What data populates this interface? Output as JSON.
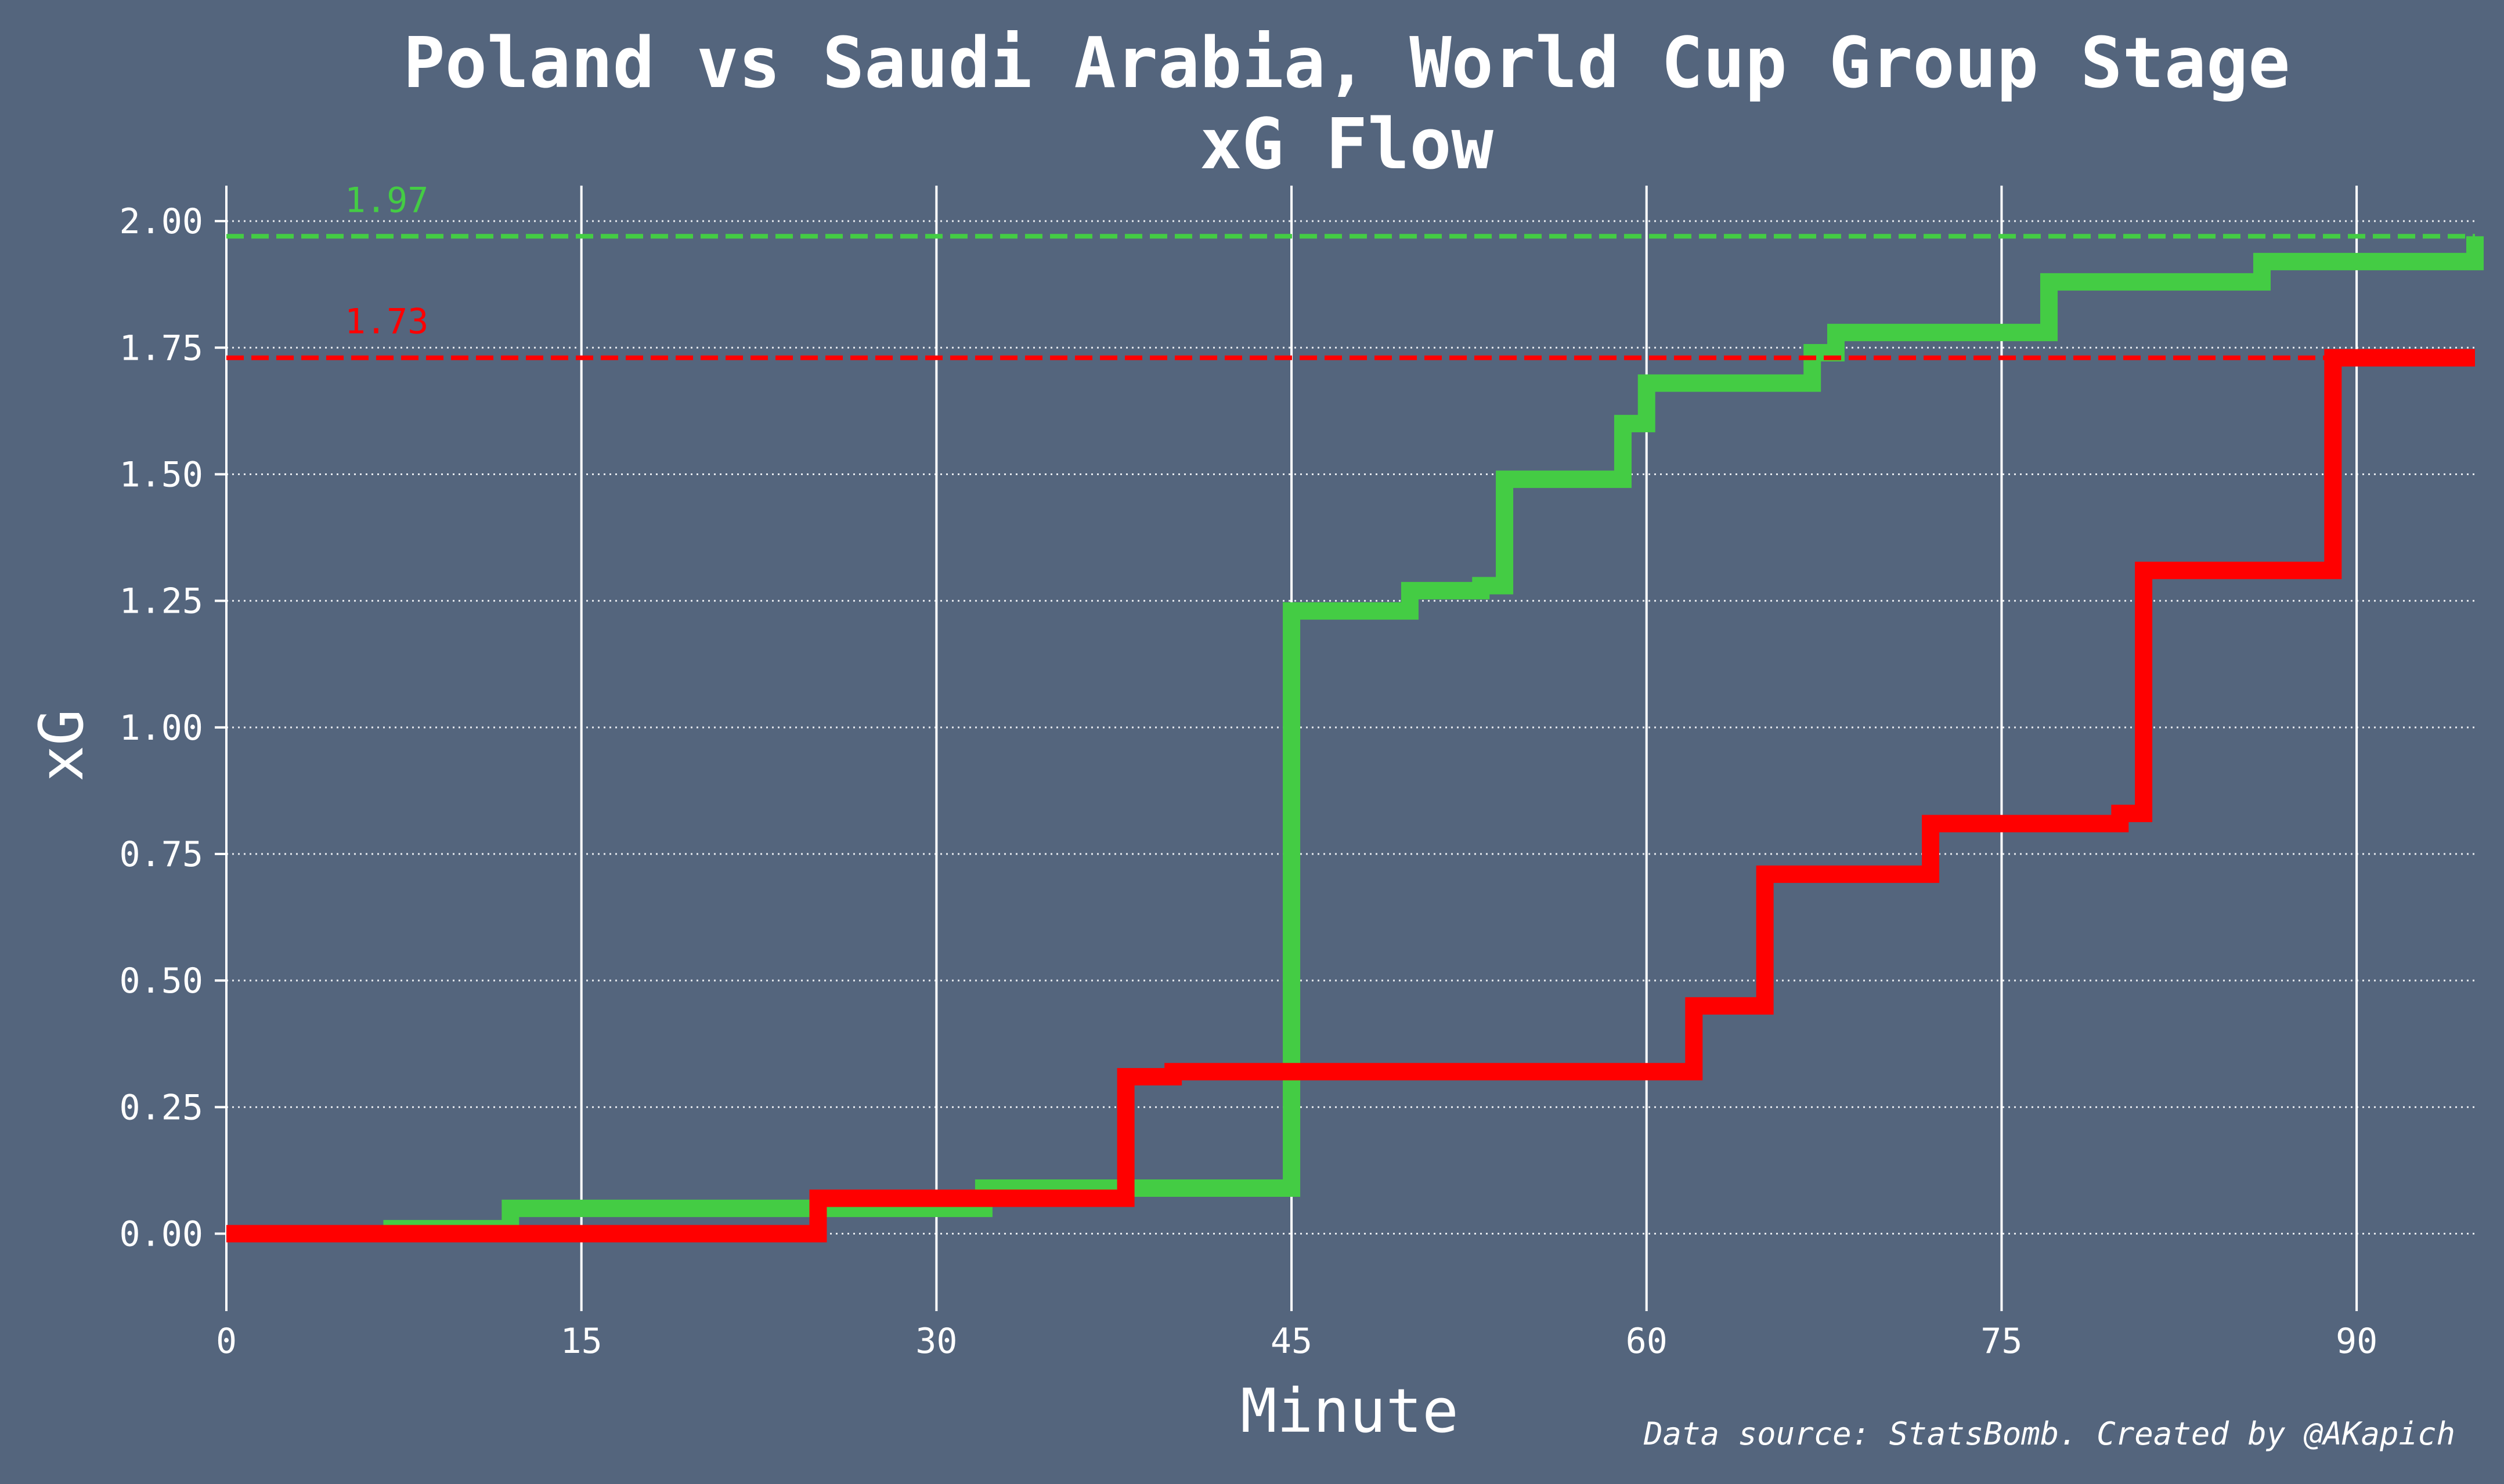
{
  "chart_data": {
    "type": "line",
    "title": "Poland vs Saudi Arabia, World Cup Group Stage",
    "subtitle": "xG Flow",
    "xlabel": "Minute",
    "ylabel": "xG",
    "xlim": [
      0,
      95
    ],
    "ylim": [
      -0.13,
      2.07
    ],
    "x_ticks": [
      {
        "value": 0,
        "label": "0"
      },
      {
        "value": 15,
        "label": "15"
      },
      {
        "value": 30,
        "label": "30"
      },
      {
        "value": 45,
        "label": "45"
      },
      {
        "value": 60,
        "label": "60"
      },
      {
        "value": 75,
        "label": "75"
      },
      {
        "value": 90,
        "label": "90"
      }
    ],
    "y_ticks": [
      {
        "value": 0.0,
        "label": "0.00"
      },
      {
        "value": 0.25,
        "label": "0.25"
      },
      {
        "value": 0.5,
        "label": "0.50"
      },
      {
        "value": 0.75,
        "label": "0.75"
      },
      {
        "value": 1.0,
        "label": "1.00"
      },
      {
        "value": 1.25,
        "label": "1.25"
      },
      {
        "value": 1.5,
        "label": "1.50"
      },
      {
        "value": 1.75,
        "label": "1.75"
      },
      {
        "value": 2.0,
        "label": "2.00"
      }
    ],
    "grid": {
      "x": "solid",
      "y": "dotted"
    },
    "series": [
      {
        "color": "#44cc44",
        "final_label": "1.97",
        "final_value": 1.97,
        "x": [
          0,
          7,
          12,
          32,
          45,
          50,
          53,
          54,
          59,
          60,
          67,
          68,
          77,
          86,
          95
        ],
        "y": [
          0,
          0.01,
          0.05,
          0.09,
          1.23,
          1.27,
          1.28,
          1.49,
          1.6,
          1.68,
          1.74,
          1.78,
          1.88,
          1.92,
          1.97
        ]
      },
      {
        "color": "#ff0000",
        "final_label": "1.73",
        "final_value": 1.73,
        "x": [
          0,
          25,
          38,
          40,
          62,
          65,
          72,
          80,
          81,
          89,
          95
        ],
        "y": [
          0,
          0.07,
          0.31,
          0.32,
          0.45,
          0.71,
          0.81,
          0.83,
          1.31,
          1.73,
          1.73
        ]
      }
    ],
    "source_note": "Data source: StatsBomb. Created by @AKapich"
  }
}
